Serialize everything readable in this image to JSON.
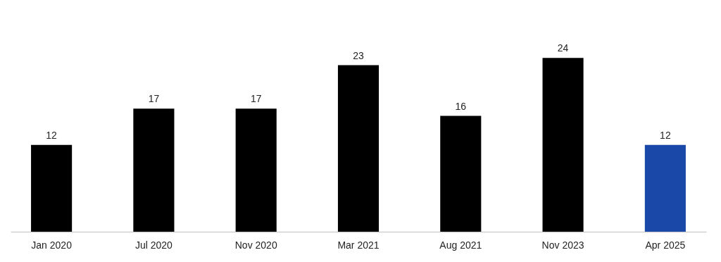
{
  "chart_data": {
    "type": "bar",
    "categories": [
      "Jan 2020",
      "Jul 2020",
      "Nov 2020",
      "Mar 2021",
      "Aug 2021",
      "Nov 2023",
      "Apr 2025"
    ],
    "values": [
      12,
      17,
      17,
      23,
      16,
      24,
      12
    ],
    "colors": [
      "#000000",
      "#000000",
      "#000000",
      "#000000",
      "#000000",
      "#000000",
      "#1a48a8"
    ],
    "data_labels": true,
    "grid": false
  }
}
